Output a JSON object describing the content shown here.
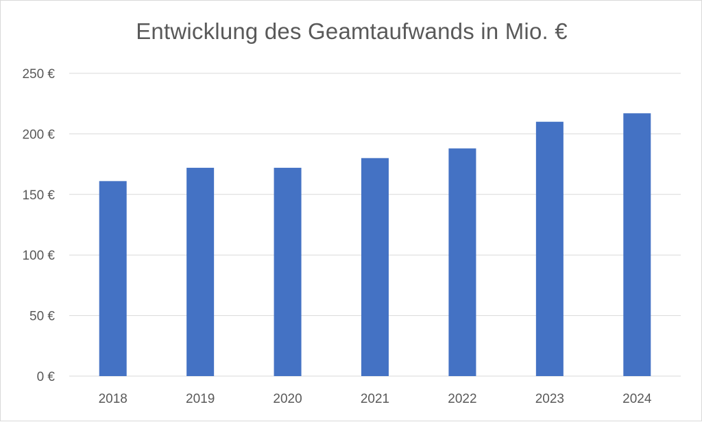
{
  "chart_data": {
    "type": "bar",
    "title": "Entwicklung des Geamtaufwands in Mio. €",
    "categories": [
      "2018",
      "2019",
      "2020",
      "2021",
      "2022",
      "2023",
      "2024"
    ],
    "values": [
      161,
      172,
      172,
      180,
      188,
      210,
      217
    ],
    "ylim": [
      0,
      250
    ],
    "yticks": [
      0,
      50,
      100,
      150,
      200,
      250
    ],
    "ytick_labels": [
      "0 €",
      "50 €",
      "100 €",
      "150 €",
      "200 €",
      "250 €"
    ],
    "grid": true,
    "legend": "none",
    "colors": {
      "bar": "#4472c4",
      "grid": "#d9d9d9",
      "text": "#595959"
    }
  }
}
